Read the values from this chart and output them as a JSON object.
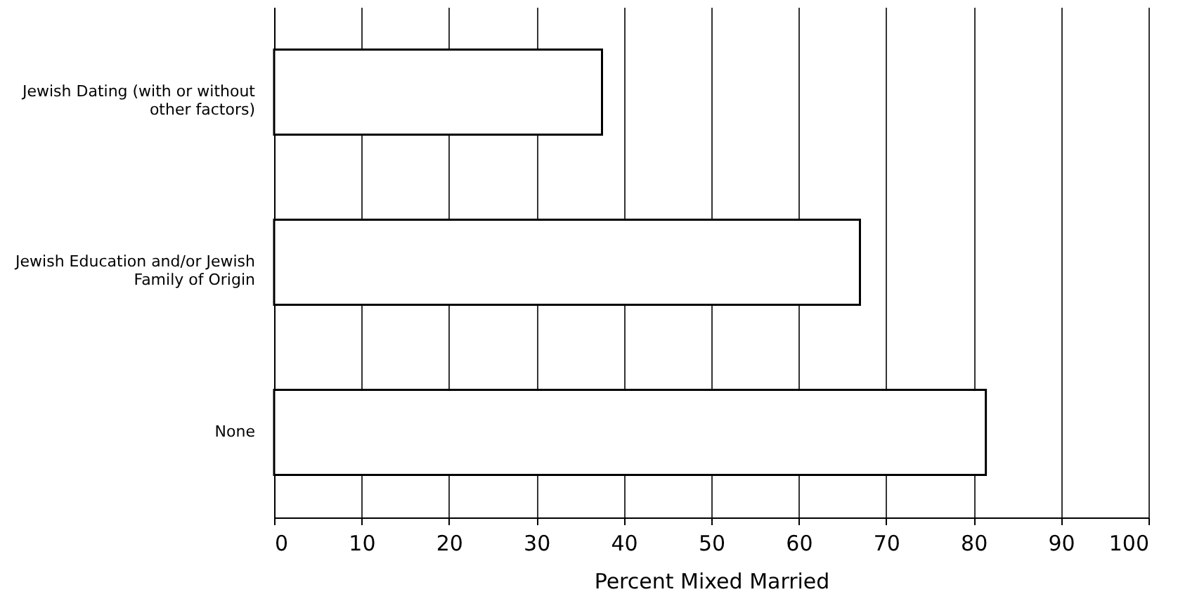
{
  "chart_data": {
    "type": "bar",
    "orientation": "horizontal",
    "xlabel": "Percent Mixed Married",
    "categories": [
      "Jewish Dating (with or without other factors)",
      "Jewish Education and/or Jewish Family of Origin",
      "None"
    ],
    "values": [
      37.5,
      67,
      81.4
    ],
    "color": "#ffffff",
    "xlim": [
      0,
      100
    ],
    "xticks": [
      0,
      10,
      20,
      30,
      40,
      50,
      60,
      70,
      80,
      90,
      100
    ],
    "grid": "x"
  }
}
